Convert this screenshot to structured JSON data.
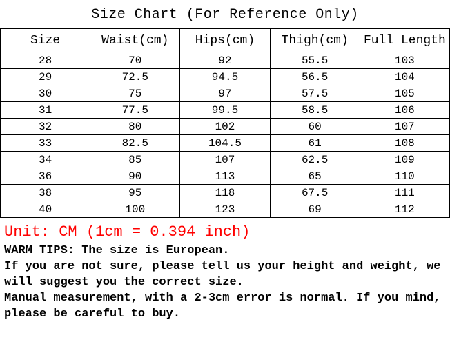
{
  "title": "Size Chart  (For Reference Only)",
  "table": {
    "columns": [
      "Size",
      "Waist(cm)",
      "Hips(cm)",
      "Thigh(cm)",
      "Full Length"
    ],
    "rows": [
      [
        "28",
        "70",
        "92",
        "55.5",
        "103"
      ],
      [
        "29",
        "72.5",
        "94.5",
        "56.5",
        "104"
      ],
      [
        "30",
        "75",
        "97",
        "57.5",
        "105"
      ],
      [
        "31",
        "77.5",
        "99.5",
        "58.5",
        "106"
      ],
      [
        "32",
        "80",
        "102",
        "60",
        "107"
      ],
      [
        "33",
        "82.5",
        "104.5",
        "61",
        "108"
      ],
      [
        "34",
        "85",
        "107",
        "62.5",
        "109"
      ],
      [
        "36",
        "90",
        "113",
        "65",
        "110"
      ],
      [
        "38",
        "95",
        "118",
        "67.5",
        "111"
      ],
      [
        "40",
        "100",
        "123",
        "69",
        "112"
      ]
    ],
    "border_color": "#000000",
    "background_color": "#ffffff",
    "header_fontsize": 18,
    "cell_fontsize": 16,
    "font_family": "Courier New"
  },
  "notes": {
    "unit": "Unit: CM (1cm = 0.394 inch)",
    "unit_color": "#ff0000",
    "unit_fontsize": 22,
    "tips": [
      "WARM TIPS: The size is European.",
      "If you are not sure, please tell us your height and weight, we will suggest you the correct size.",
      "Manual measurement, with a 2-3cm error is normal. If you mind, please be careful to buy."
    ],
    "tip_color": "#000000",
    "tip_fontsize": 17,
    "tip_fontweight": "bold"
  }
}
